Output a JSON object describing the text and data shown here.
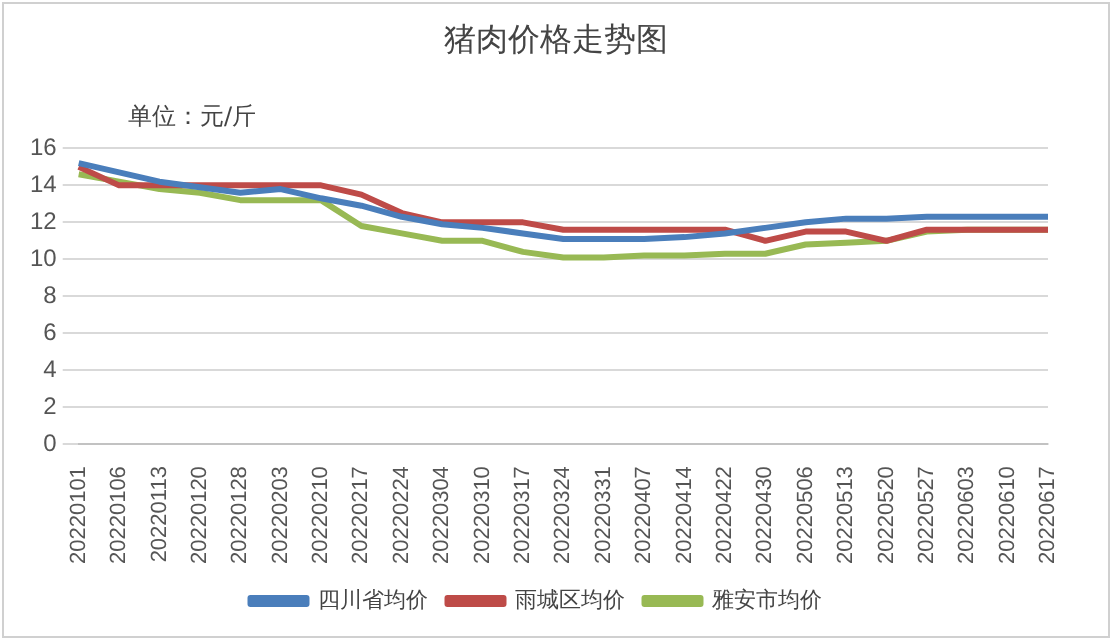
{
  "chart_data": {
    "type": "line",
    "title": "猪肉价格走势图",
    "annotations": [
      "单位：元/斤"
    ],
    "categories": [
      "20220101",
      "20220106",
      "20220113",
      "20220120",
      "20220128",
      "20220203",
      "20220210",
      "20220217",
      "20220224",
      "20220304",
      "20220310",
      "20220317",
      "20220324",
      "20220331",
      "20220407",
      "20220414",
      "20220422",
      "20220430",
      "20220506",
      "20220513",
      "20220520",
      "20220527",
      "20220603",
      "20220610",
      "20220617"
    ],
    "series": [
      {
        "name": "四川省均价",
        "color": "#4a7ebb",
        "values": [
          15.2,
          14.7,
          14.2,
          13.9,
          13.6,
          13.8,
          13.3,
          12.9,
          12.3,
          11.9,
          11.7,
          11.4,
          11.1,
          11.1,
          11.1,
          11.2,
          11.4,
          11.7,
          12.0,
          12.2,
          12.2,
          12.3,
          12.3,
          12.3,
          12.3
        ]
      },
      {
        "name": "雨城区均价",
        "color": "#be4b48",
        "values": [
          15.0,
          14.0,
          14.0,
          14.0,
          14.0,
          14.0,
          14.0,
          13.5,
          12.5,
          12.0,
          12.0,
          12.0,
          11.6,
          11.6,
          11.6,
          11.6,
          11.6,
          11.0,
          11.5,
          11.5,
          11.0,
          11.6,
          11.6,
          11.6,
          11.6
        ]
      },
      {
        "name": "雅安市均价",
        "color": "#98b954",
        "values": [
          14.6,
          14.2,
          13.8,
          13.6,
          13.2,
          13.2,
          13.2,
          11.8,
          11.4,
          11.0,
          11.0,
          10.4,
          10.1,
          10.1,
          10.2,
          10.2,
          10.3,
          10.3,
          10.8,
          10.9,
          11.0,
          11.5,
          11.6,
          11.6,
          11.6
        ]
      }
    ],
    "ylim": [
      0,
      16
    ],
    "yticks": [
      0,
      2,
      4,
      6,
      8,
      10,
      12,
      14,
      16
    ],
    "grid": "y",
    "legend": "bottom",
    "marker": "none",
    "line_style": "solid"
  }
}
